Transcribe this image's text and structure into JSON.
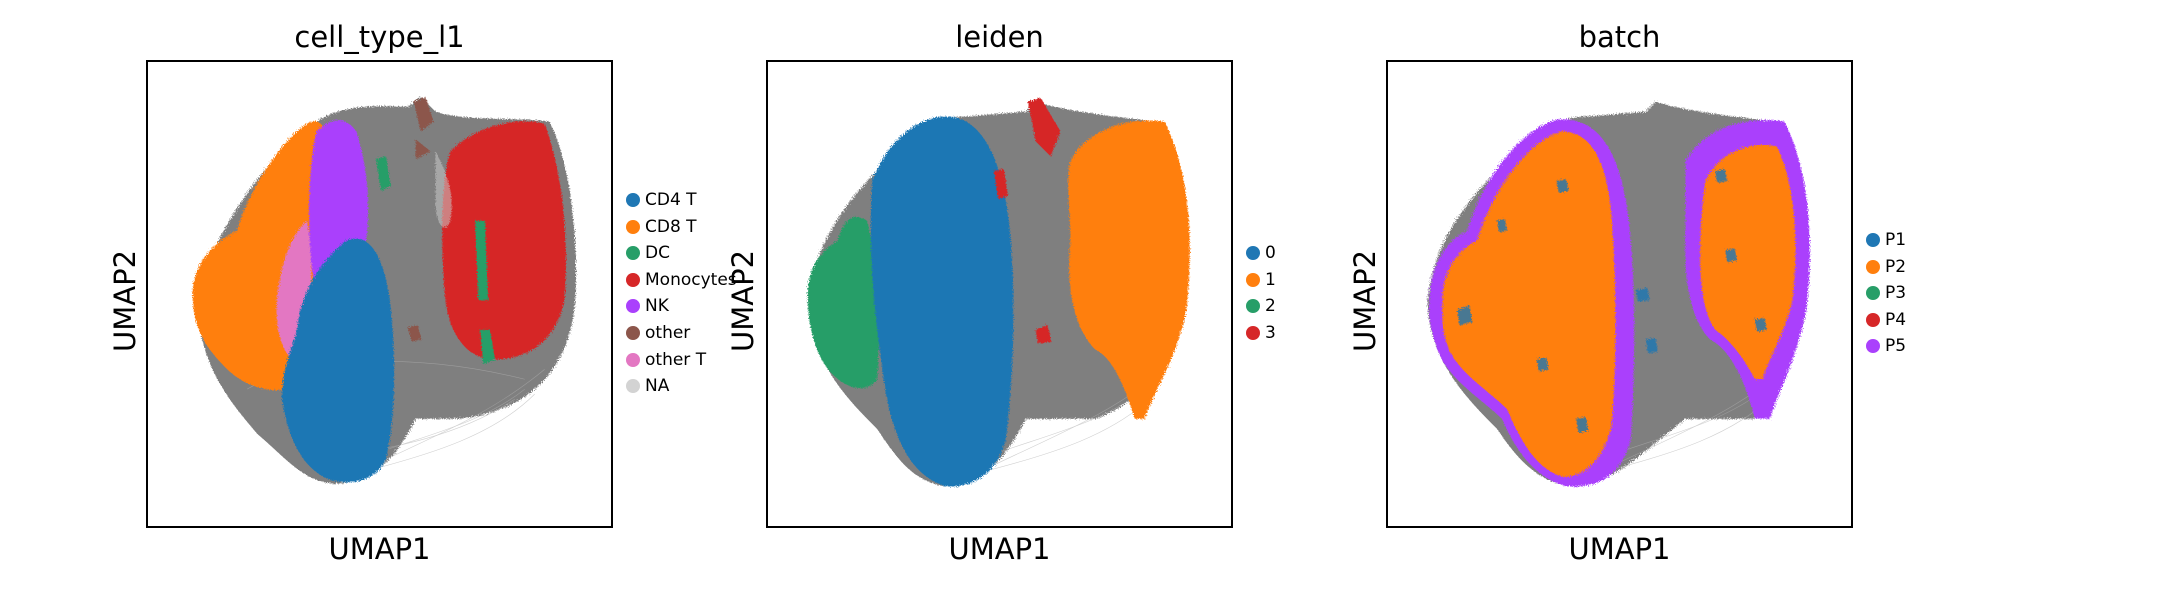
{
  "chart_data": [
    {
      "type": "scatter",
      "title": "cell_type_l1",
      "xlabel": "UMAP1",
      "ylabel": "UMAP2",
      "xticks": [],
      "yticks": [],
      "grid": false,
      "legend_placement": "right",
      "legend": [
        {
          "label": "CD4 T",
          "color": "#1f77b4"
        },
        {
          "label": "CD8 T",
          "color": "#ff7f0e"
        },
        {
          "label": "DC",
          "color": "#279e68"
        },
        {
          "label": "Monocytes",
          "color": "#d62728"
        },
        {
          "label": "NK",
          "color": "#aa40fc"
        },
        {
          "label": "other",
          "color": "#8c564b"
        },
        {
          "label": "other T",
          "color": "#e377c2"
        },
        {
          "label": "NA",
          "color": "#d3d3d3"
        }
      ]
    },
    {
      "type": "scatter",
      "title": "leiden",
      "xlabel": "UMAP1",
      "ylabel": "UMAP2",
      "xticks": [],
      "yticks": [],
      "grid": false,
      "legend_placement": "right",
      "legend": [
        {
          "label": "0",
          "color": "#1f77b4"
        },
        {
          "label": "1",
          "color": "#ff7f0e"
        },
        {
          "label": "2",
          "color": "#279e68"
        },
        {
          "label": "3",
          "color": "#d62728"
        }
      ]
    },
    {
      "type": "scatter",
      "title": "batch",
      "xlabel": "UMAP1",
      "ylabel": "UMAP2",
      "xticks": [],
      "yticks": [],
      "grid": false,
      "legend_placement": "right",
      "legend": [
        {
          "label": "P1",
          "color": "#1f77b4"
        },
        {
          "label": "P2",
          "color": "#ff7f0e"
        },
        {
          "label": "P3",
          "color": "#279e68"
        },
        {
          "label": "P4",
          "color": "#d62728"
        },
        {
          "label": "P5",
          "color": "#aa40fc"
        }
      ]
    }
  ],
  "colors": {
    "edges": "#7f7f7f",
    "frame": "#000000"
  }
}
